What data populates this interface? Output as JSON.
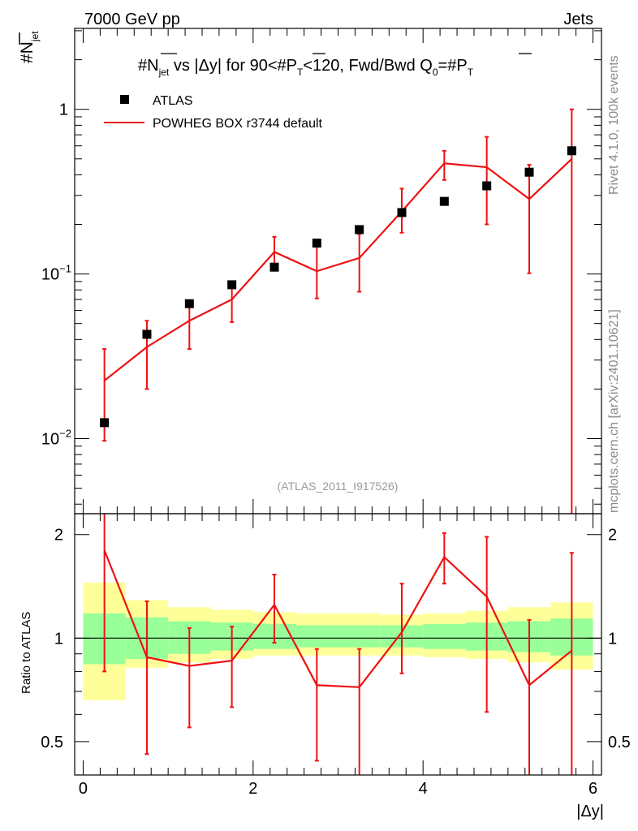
{
  "header": {
    "left": "7000 GeV pp",
    "right": "Jets",
    "side_top": "Rivet 4.1.0,  100k events",
    "side_bottom": "mcplots.cern.ch [arXiv:2401.10621]"
  },
  "chart_data": [
    {
      "type": "scatter",
      "panel": "main",
      "title": "#N_jet vs |Δy| for 90<#P_T<120, Fwd/Bwd Q0=#P_T",
      "title_parts": {
        "p1": "#",
        "n": "N",
        "jet": "jet",
        "p2": " vs |Δy| for 90<#",
        "p": "P",
        "t1": "T",
        "p3": "<120, Fwd/Bwd Q",
        "zero": "0",
        "p4": "=#",
        "t2": "T"
      },
      "ylabel": {
        "hash": "#",
        "n": "N",
        "jet": "jet"
      },
      "yscale": "log",
      "ylim": [
        0.0035,
        3.1
      ],
      "yticks": [
        {
          "value": 1,
          "base": "1",
          "exp": ""
        },
        {
          "value": 0.1,
          "base": "10",
          "exp": "−1"
        },
        {
          "value": 0.01,
          "base": "10",
          "exp": "−2"
        }
      ],
      "watermark": "(ATLAS_2011_I917526)",
      "legend": [
        {
          "name": "ATLAS",
          "marker": "square",
          "color": "#000000"
        },
        {
          "name": "POWHEG BOX r3744 default",
          "marker": "line",
          "color": "#ee1111"
        }
      ],
      "x": [
        0.25,
        0.75,
        1.25,
        1.75,
        2.25,
        2.75,
        3.25,
        3.75,
        4.25,
        4.75,
        5.25,
        5.75
      ],
      "series": [
        {
          "name": "ATLAS",
          "values": [
            0.0125,
            0.043,
            0.066,
            0.086,
            0.11,
            0.154,
            0.186,
            0.236,
            0.276,
            0.343,
            0.415,
            0.56
          ]
        },
        {
          "name": "POWHEG BOX r3744 default",
          "bin_edges": [
            0.25,
            0.75,
            1.25,
            1.75,
            2.25,
            2.75,
            3.25,
            3.75,
            4.25,
            4.75,
            5.25,
            5.75
          ],
          "values": [
            0.0225,
            0.036,
            0.052,
            0.07,
            0.136,
            0.104,
            0.125,
            0.24,
            0.47,
            0.445,
            0.285,
            0.5
          ],
          "err_low": [
            0.0128,
            0.016,
            0.017,
            0.019,
            0.029,
            0.033,
            0.047,
            0.062,
            0.098,
            0.245,
            0.184,
            0.4998
          ],
          "err_high": [
            0.0125,
            0.016,
            0.016,
            0.02,
            0.032,
            0.05,
            0.05,
            0.09,
            0.09,
            0.235,
            0.175,
            0.5
          ]
        }
      ]
    },
    {
      "type": "line",
      "panel": "ratio",
      "ylabel": "Ratio to ATLAS",
      "xlabel": "|Δy|",
      "yscale": "log",
      "ylim": [
        0.4,
        2.3
      ],
      "yticks": [
        {
          "value": 2,
          "label": "2"
        },
        {
          "value": 1,
          "label": "1"
        },
        {
          "value": 0.5,
          "label": "0.5"
        }
      ],
      "xlim": [
        -0.1,
        6.1
      ],
      "xticks": [
        0,
        2,
        4,
        6
      ],
      "xtick_labels": [
        "0",
        "2",
        "4",
        "6"
      ],
      "bands": {
        "bin_edges": [
          0,
          0.5,
          1,
          1.5,
          2,
          2.5,
          3,
          3.5,
          4,
          4.5,
          5,
          5.5,
          6
        ],
        "yellow_low": [
          0.66,
          0.82,
          0.85,
          0.87,
          0.89,
          0.89,
          0.89,
          0.89,
          0.88,
          0.87,
          0.85,
          0.81
        ],
        "yellow_high": [
          1.45,
          1.29,
          1.23,
          1.21,
          1.19,
          1.18,
          1.18,
          1.17,
          1.18,
          1.2,
          1.23,
          1.27
        ],
        "green_low": [
          0.84,
          0.87,
          0.9,
          0.92,
          0.93,
          0.94,
          0.94,
          0.94,
          0.93,
          0.92,
          0.91,
          0.89
        ],
        "green_high": [
          1.18,
          1.15,
          1.12,
          1.11,
          1.1,
          1.09,
          1.09,
          1.09,
          1.1,
          1.11,
          1.12,
          1.14
        ]
      },
      "x": [
        0.25,
        0.75,
        1.25,
        1.75,
        2.25,
        2.75,
        3.25,
        3.75,
        4.25,
        4.75,
        5.25,
        5.75
      ],
      "series": [
        {
          "name": "POWHEG BOX r3744 default",
          "values": [
            1.8,
            0.88,
            0.83,
            0.86,
            1.25,
            0.73,
            0.72,
            1.04,
            1.72,
            1.32,
            0.73,
            0.92
          ],
          "err_low": [
            1.0,
            0.42,
            0.28,
            0.23,
            0.28,
            0.29,
            0.34,
            0.25,
            0.28,
            0.71,
            0.41,
            0.6
          ],
          "err_high": [
            0.6,
            0.4,
            0.24,
            0.22,
            0.28,
            0.2,
            0.21,
            0.4,
            0.3,
            0.65,
            0.4,
            0.85
          ]
        }
      ],
      "reference_line": 1
    }
  ]
}
